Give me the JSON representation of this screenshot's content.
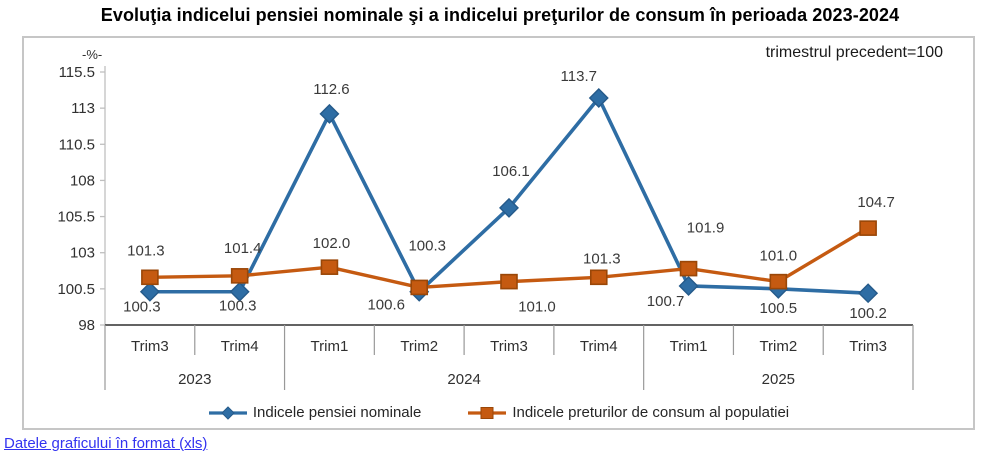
{
  "title": "Evoluţia indicelui pensiei nominale şi a indicelui preţurilor de consum în perioada 2023-2024",
  "chart": {
    "unit_label": "-%-",
    "note": "trimestrul precedent=100"
  },
  "chart_data": {
    "type": "line",
    "title": "Evoluţia indicelui pensiei nominale şi a indicelui preţurilor de consum în perioada 2023-2024",
    "subtitle": "trimestrul precedent=100",
    "ylabel": "-%-",
    "categories": [
      "Trim3",
      "Trim4",
      "Trim1",
      "Trim2",
      "Trim3",
      "Trim4",
      "Trim1",
      "Trim2",
      "Trim3"
    ],
    "year_groups": [
      {
        "label": "2023",
        "span": 2
      },
      {
        "label": "2024",
        "span": 4
      },
      {
        "label": "2025",
        "span": 3
      }
    ],
    "series": [
      {
        "name": "Indicele pensiei nominale",
        "marker": "diamond",
        "color": "#2E6DA4",
        "marker_edge": "#255A8A",
        "values": [
          100.3,
          100.3,
          112.6,
          100.3,
          106.1,
          113.7,
          100.7,
          100.5,
          100.2
        ]
      },
      {
        "name": "Indicele preturilor de consum al populatiei",
        "marker": "square",
        "color": "#C55A11",
        "marker_edge": "#9A4708",
        "values": [
          101.3,
          101.4,
          102.0,
          100.6,
          101.0,
          101.3,
          101.9,
          101.0,
          104.7
        ]
      }
    ],
    "ylim": [
      98,
      115.5
    ],
    "yticks": [
      98,
      100.5,
      103,
      105.5,
      108,
      110.5,
      113,
      115.5
    ],
    "grid": false,
    "legend_position": "bottom",
    "data_labels": true
  },
  "footer": {
    "link_label": "Datele graficului în format (xls)"
  }
}
